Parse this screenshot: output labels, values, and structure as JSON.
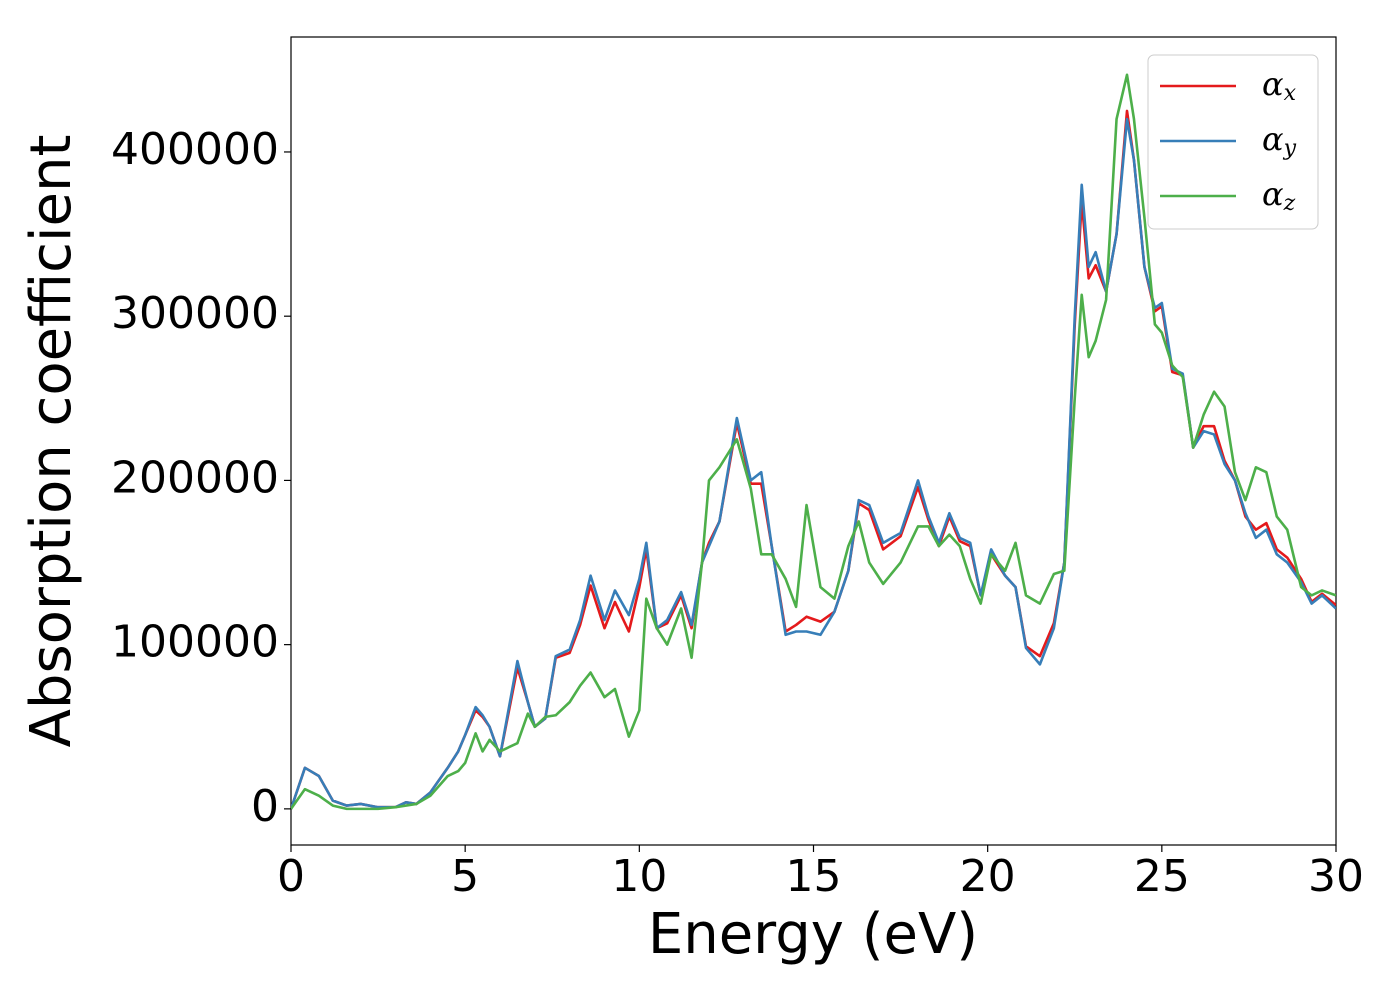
{
  "chart_data": {
    "type": "line",
    "x_label": "Energy (eV)",
    "y_label": "Absorption coefficient",
    "xlim": [
      0,
      30
    ],
    "ylim": [
      -22000,
      470000
    ],
    "xticks": [
      0,
      5,
      10,
      15,
      20,
      25,
      30
    ],
    "yticks": [
      0,
      100000,
      200000,
      300000,
      400000
    ],
    "legend": "upper right",
    "x": [
      0,
      0.4,
      0.8,
      1.2,
      1.6,
      2,
      2.5,
      3,
      3.3,
      3.6,
      4,
      4.5,
      4.8,
      5,
      5.3,
      5.5,
      5.7,
      6,
      6.5,
      6.8,
      7,
      7.3,
      7.6,
      8,
      8.3,
      8.6,
      9,
      9.3,
      9.7,
      10,
      10.2,
      10.5,
      10.8,
      11.2,
      11.5,
      11.8,
      12,
      12.3,
      12.8,
      13.2,
      13.5,
      13.8,
      14.2,
      14.5,
      14.8,
      15.2,
      15.6,
      16,
      16.3,
      16.6,
      17,
      17.5,
      18,
      18.3,
      18.6,
      18.9,
      19.2,
      19.5,
      19.8,
      20.1,
      20.5,
      20.8,
      21.1,
      21.5,
      21.9,
      22.2,
      22.5,
      22.7,
      22.9,
      23.1,
      23.4,
      23.7,
      24,
      24.2,
      24.5,
      24.8,
      25,
      25.3,
      25.6,
      25.9,
      26.2,
      26.5,
      26.8,
      27.1,
      27.4,
      27.7,
      28,
      28.3,
      28.6,
      29,
      29.3,
      29.6,
      30
    ],
    "series": [
      {
        "name": "αx",
        "color": "#e41a1c",
        "values": [
          0,
          25000,
          20000,
          5000,
          2000,
          3000,
          1000,
          1000,
          4000,
          3000,
          10000,
          25000,
          35000,
          45000,
          60000,
          56000,
          50000,
          32000,
          86000,
          65000,
          50000,
          55000,
          92000,
          95000,
          112000,
          136000,
          110000,
          126000,
          108000,
          135000,
          158000,
          110000,
          113000,
          130000,
          110000,
          150000,
          162000,
          175000,
          235000,
          198000,
          198000,
          160000,
          108000,
          112000,
          117000,
          114000,
          120000,
          145000,
          186000,
          182000,
          158000,
          166000,
          196000,
          176000,
          160000,
          178000,
          163000,
          160000,
          130000,
          155000,
          142000,
          135000,
          99000,
          93000,
          113000,
          150000,
          295000,
          370000,
          323000,
          331000,
          315000,
          350000,
          425000,
          395000,
          330000,
          303000,
          306000,
          266000,
          264000,
          220000,
          233000,
          233000,
          212000,
          200000,
          178000,
          170000,
          174000,
          158000,
          153000,
          140000,
          126000,
          131000,
          124000
        ]
      },
      {
        "name": "αy",
        "color": "#377eb8",
        "values": [
          0,
          25000,
          20000,
          5000,
          2000,
          3000,
          1000,
          1000,
          4000,
          3000,
          10000,
          25000,
          35000,
          45000,
          62000,
          57000,
          50000,
          32000,
          90000,
          65000,
          50000,
          55000,
          93000,
          97000,
          115000,
          142000,
          115000,
          133000,
          118000,
          140000,
          162000,
          110000,
          115000,
          132000,
          112000,
          150000,
          160000,
          175000,
          238000,
          200000,
          205000,
          160000,
          106000,
          108000,
          108000,
          106000,
          120000,
          145000,
          188000,
          185000,
          162000,
          168000,
          200000,
          178000,
          162000,
          180000,
          165000,
          162000,
          130000,
          158000,
          142000,
          135000,
          98000,
          88000,
          110000,
          150000,
          300000,
          380000,
          330000,
          339000,
          315000,
          350000,
          420000,
          395000,
          330000,
          305000,
          308000,
          268000,
          265000,
          220000,
          230000,
          228000,
          210000,
          200000,
          180000,
          165000,
          170000,
          155000,
          150000,
          138000,
          125000,
          130000,
          122000
        ]
      },
      {
        "name": "αz",
        "color": "#4daf4a",
        "values": [
          0,
          12000,
          8000,
          2000,
          0,
          0,
          0,
          1000,
          2000,
          3000,
          8000,
          20000,
          23000,
          28000,
          46000,
          35000,
          42000,
          35000,
          40000,
          58000,
          50000,
          56000,
          57000,
          65000,
          75000,
          83000,
          68000,
          73000,
          44000,
          60000,
          128000,
          110000,
          100000,
          122000,
          92000,
          150000,
          200000,
          208000,
          225000,
          195000,
          155000,
          155000,
          140000,
          123000,
          185000,
          135000,
          128000,
          160000,
          175000,
          150000,
          137000,
          150000,
          172000,
          172000,
          160000,
          167000,
          160000,
          140000,
          125000,
          155000,
          145000,
          162000,
          130000,
          125000,
          143000,
          145000,
          250000,
          313000,
          275000,
          285000,
          310000,
          420000,
          447000,
          420000,
          360000,
          295000,
          290000,
          270000,
          263000,
          220000,
          240000,
          254000,
          245000,
          205000,
          188000,
          208000,
          205000,
          178000,
          170000,
          135000,
          130000,
          133000,
          130000
        ]
      }
    ]
  }
}
